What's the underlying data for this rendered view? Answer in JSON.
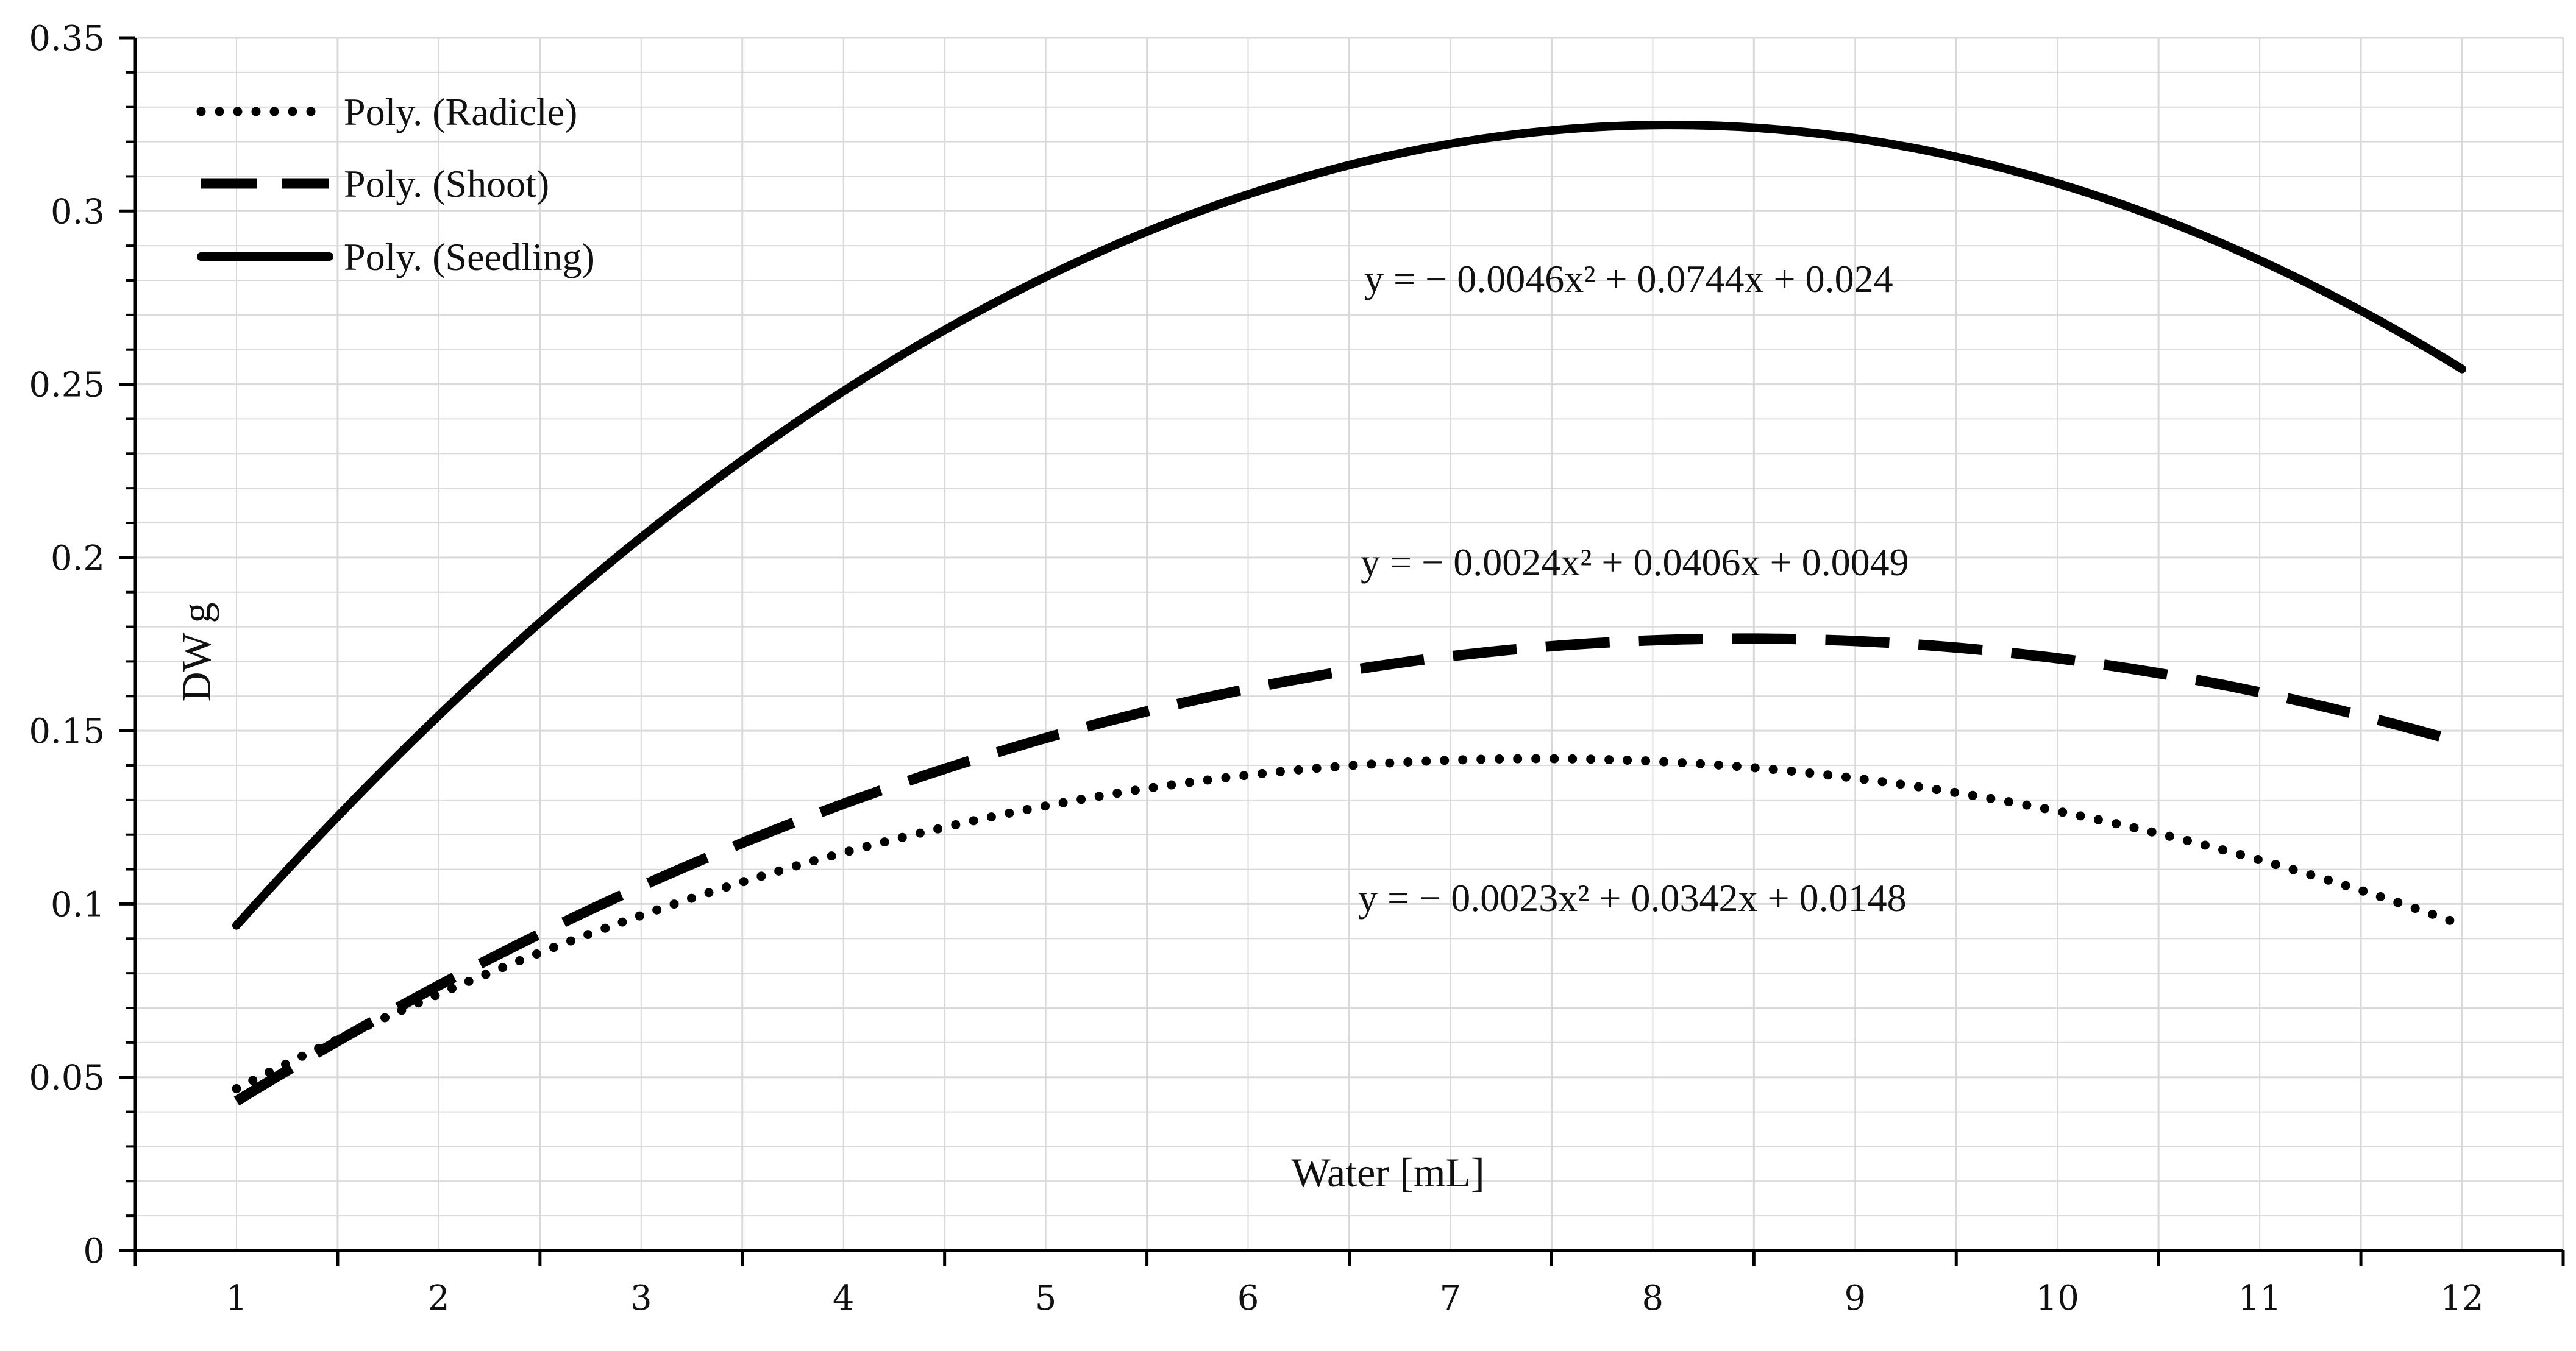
{
  "chart_data": {
    "type": "line",
    "title": "",
    "xlabel": "Water [mL]",
    "ylabel": "DW g",
    "xlim": [
      0.5,
      12.5
    ],
    "ylim": [
      0,
      0.35
    ],
    "x_ticks": [
      1,
      2,
      3,
      4,
      5,
      6,
      7,
      8,
      9,
      10,
      11,
      12
    ],
    "x_tick_labels": [
      "1",
      "2",
      "3",
      "4",
      "5",
      "6",
      "7",
      "8",
      "9",
      "10",
      "11",
      "12"
    ],
    "y_ticks": [
      0,
      0.05,
      0.1,
      0.15,
      0.2,
      0.25,
      0.3,
      0.35
    ],
    "y_tick_labels": [
      "0",
      "0.05",
      "0.1",
      "0.15",
      "0.2",
      "0.25",
      "0.3",
      "0.35"
    ],
    "grid": true,
    "legend_position": "top-left",
    "series": [
      {
        "name": "Poly. (Radicle)",
        "style": "dotted",
        "coefficients": [
          -0.0023,
          0.0342,
          0.0148
        ],
        "x_range": [
          1,
          12
        ],
        "equation": "y = − 0.0023x² + 0.0342x + 0.0148"
      },
      {
        "name": "Poly. (Shoot)",
        "style": "dashed",
        "coefficients": [
          -0.0024,
          0.0406,
          0.0049
        ],
        "x_range": [
          1,
          12
        ],
        "equation": "y = − 0.0024x² + 0.0406x + 0.0049"
      },
      {
        "name": "Poly. (Seedling)",
        "style": "solid",
        "coefficients": [
          -0.0046,
          0.0744,
          0.024
        ],
        "x_range": [
          1,
          12
        ],
        "equation": "y = − 0.0046x² + 0.0744x + 0.024"
      }
    ],
    "colors": {
      "line": "#000000",
      "grid": "#d9d9d9",
      "axis": "#000000"
    }
  }
}
